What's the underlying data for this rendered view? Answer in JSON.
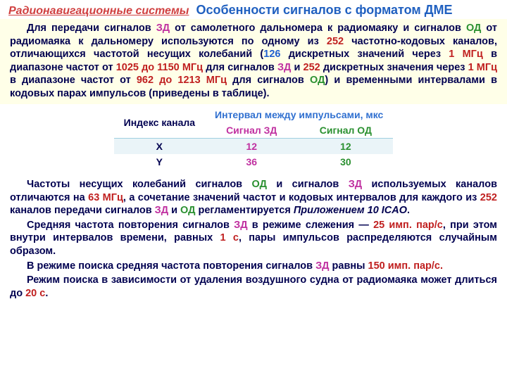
{
  "header": {
    "left": "Радионавигационные системы",
    "right": "Особенности сигналов с форматом ДМЕ"
  },
  "p1": {
    "t1": "Для передачи сигналов ",
    "zd1": "ЗД",
    "t2": " от самолетного дальномера к радиомаяку и сигналов ",
    "od1": "ОД",
    "t3": " от радиомаяка к дальномеру используются по одному из ",
    "n252a": "252",
    "t4": " частотно-кодовых каналов, отличающихся частотой несущих колебаний (",
    "n126": "126",
    "t5": " дискретных значений через ",
    "mhz1": "1 МГц",
    "t6": " в диапазоне частот от ",
    "rng1": "1025 до 1150 МГц",
    "t7": " для сигналов ",
    "zd2": "ЗД",
    "t8": " и ",
    "n252b": "252",
    "t9": " дискретных значения через ",
    "mhz2": "1 МГц",
    "t10": " в диапазоне частот от ",
    "rng2": "962 до 1213 МГц",
    "t11": " для сигналов ",
    "od2": "ОД",
    "t12": ") и временными интервалами в кодовых парах импульсов (приведены в таблице)."
  },
  "table": {
    "h_idx": "Индекс канала",
    "h_int": "Интервал между импульсами, мкс",
    "h_zd": "Сигнал ЗД",
    "h_od": "Сигнал ОД",
    "rows": [
      {
        "idx": "X",
        "zd": "12",
        "od": "12"
      },
      {
        "idx": "Y",
        "zd": "36",
        "od": "30"
      }
    ]
  },
  "p2": {
    "t1": "Частоты несущих колебаний сигналов ",
    "od": "ОД",
    "t2": " и сигналов ",
    "zd": "ЗД",
    "t3": " используемых каналов отличаются на ",
    "n63": "63 МГц",
    "t4": ", а сочетание значений частот и кодовых интервалов для каждого из ",
    "n252": "252",
    "t5": " каналов передачи сигналов ",
    "zd2": "ЗД",
    "t6": " и ",
    "od2": "ОД",
    "t7": " регламентируется ",
    "annex": "Приложением 10 ICAO",
    "t8": "."
  },
  "p3": {
    "t1": "Средняя частота повторения сигналов ",
    "zd": "ЗД",
    "t2": " в режиме слежения — ",
    "v25": "25 имп. пар/с",
    "t3": ", при этом внутри интервалов времени, равных ",
    "v1s": "1 с",
    "t4": ", пары импульсов распределяются случайным образом."
  },
  "p4": {
    "t1": "В режиме поиска средняя частота повторения сигналов ",
    "zd": "ЗД",
    "t2": " равны ",
    "v150": "150 имп. пар/с.",
    "t3": ""
  },
  "p5": {
    "t1": "Режим поиска в зависимости от удаления воздушного судна от радиомаяка может длиться до ",
    "v20": "20 с",
    "t2": "."
  }
}
